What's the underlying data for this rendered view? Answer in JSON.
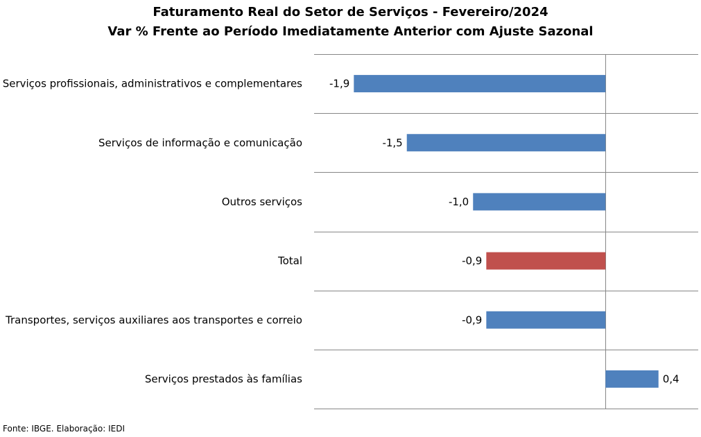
{
  "chart_data": {
    "type": "bar",
    "orientation": "horizontal",
    "title": "Faturamento Real do Setor de Serviços - Fevereiro/2024",
    "subtitle": "Var % Frente ao Período Imediatamente Anterior com Ajuste Sazonal",
    "categories": [
      "Serviços profissionais, administrativos e complementares",
      "Serviços de informação e comunicação",
      "Outros serviços",
      "Total",
      "Transportes, serviços auxiliares aos transportes e correio",
      "Serviços prestados às famílias"
    ],
    "values": [
      -1.9,
      -1.5,
      -1.0,
      -0.9,
      -0.9,
      0.4
    ],
    "value_labels": [
      "-1,9",
      "-1,5",
      "-1,0",
      "-0,9",
      "-0,9",
      "0,4"
    ],
    "colors": [
      "#4f81bd",
      "#4f81bd",
      "#4f81bd",
      "#c0504d",
      "#4f81bd",
      "#4f81bd"
    ],
    "xlim": [
      -2.2,
      0.7
    ],
    "grid": "horizontal",
    "legend": "none"
  },
  "source": "Fonte: IBGE. Elaboração: IEDI"
}
